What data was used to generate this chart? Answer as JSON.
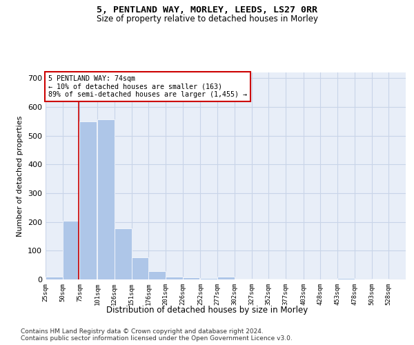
{
  "title1": "5, PENTLAND WAY, MORLEY, LEEDS, LS27 0RR",
  "title2": "Size of property relative to detached houses in Morley",
  "xlabel": "Distribution of detached houses by size in Morley",
  "ylabel": "Number of detached properties",
  "footnote1": "Contains HM Land Registry data © Crown copyright and database right 2024.",
  "footnote2": "Contains public sector information licensed under the Open Government Licence v3.0.",
  "annotation_line1": "5 PENTLAND WAY: 74sqm",
  "annotation_line2": "← 10% of detached houses are smaller (163)",
  "annotation_line3": "89% of semi-detached houses are larger (1,455) →",
  "bar_left_edges": [
    25,
    50,
    75,
    101,
    126,
    151,
    176,
    201,
    226,
    252,
    277,
    302,
    327,
    352,
    377,
    403,
    428,
    453,
    478,
    503
  ],
  "bar_heights": [
    10,
    205,
    550,
    558,
    178,
    78,
    28,
    10,
    7,
    5,
    10,
    2,
    2,
    2,
    0,
    0,
    0,
    5,
    0,
    2
  ],
  "bar_color": "#aec6e8",
  "bar_edgecolor": "white",
  "grid_color": "#c8d4e8",
  "background_color": "#e8eef8",
  "vline_x": 74,
  "vline_color": "#cc0000",
  "annotation_box_edgecolor": "#cc0000",
  "annotation_box_facecolor": "white",
  "ylim": [
    0,
    720
  ],
  "yticks": [
    0,
    100,
    200,
    300,
    400,
    500,
    600,
    700
  ],
  "xlim": [
    25,
    553
  ],
  "xtick_labels": [
    "25sqm",
    "50sqm",
    "75sqm",
    "101sqm",
    "126sqm",
    "151sqm",
    "176sqm",
    "201sqm",
    "226sqm",
    "252sqm",
    "277sqm",
    "302sqm",
    "327sqm",
    "352sqm",
    "377sqm",
    "403sqm",
    "428sqm",
    "453sqm",
    "478sqm",
    "503sqm",
    "528sqm"
  ],
  "xtick_positions": [
    25,
    50,
    75,
    101,
    126,
    151,
    176,
    201,
    226,
    252,
    277,
    302,
    327,
    352,
    377,
    403,
    428,
    453,
    478,
    503,
    528
  ]
}
